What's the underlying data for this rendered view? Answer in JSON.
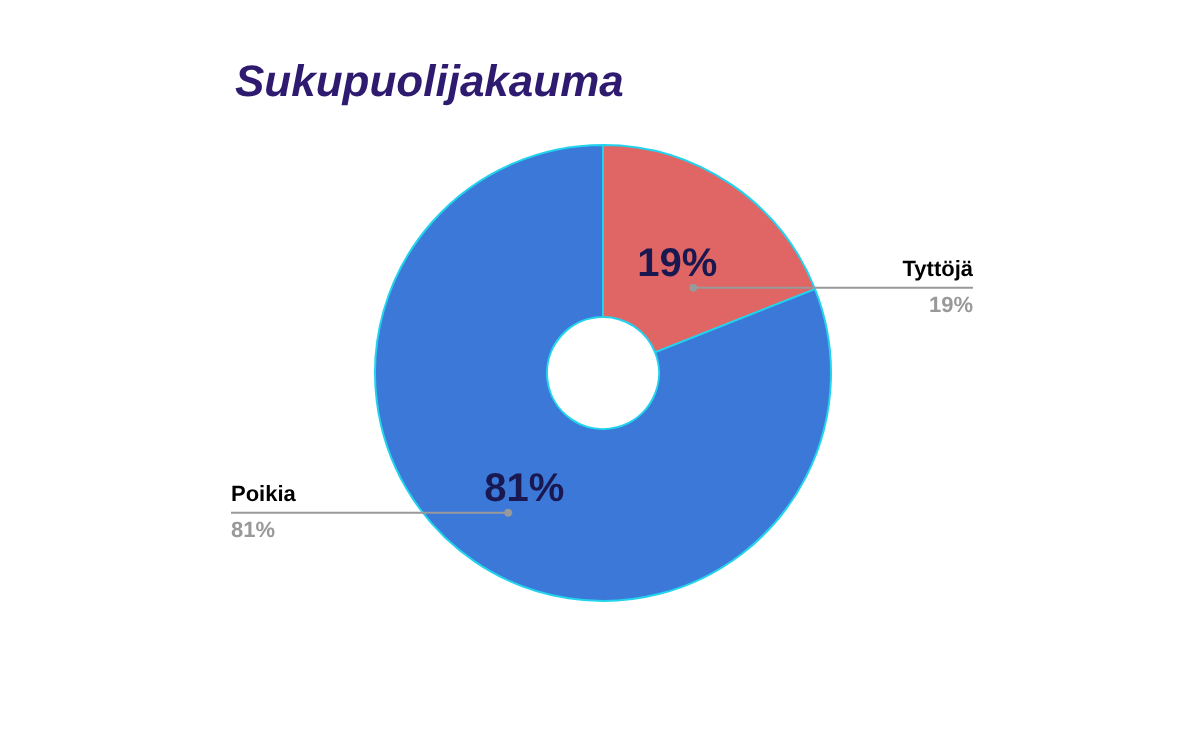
{
  "chart_data": {
    "type": "donut",
    "title": "Sukupuolijakauma",
    "categories": [
      "Tyttöjä",
      "Poikia"
    ],
    "values": [
      19,
      81
    ],
    "colors": [
      "#e06666",
      "#3c78d8"
    ],
    "value_labels": [
      "19%",
      "81%"
    ]
  }
}
